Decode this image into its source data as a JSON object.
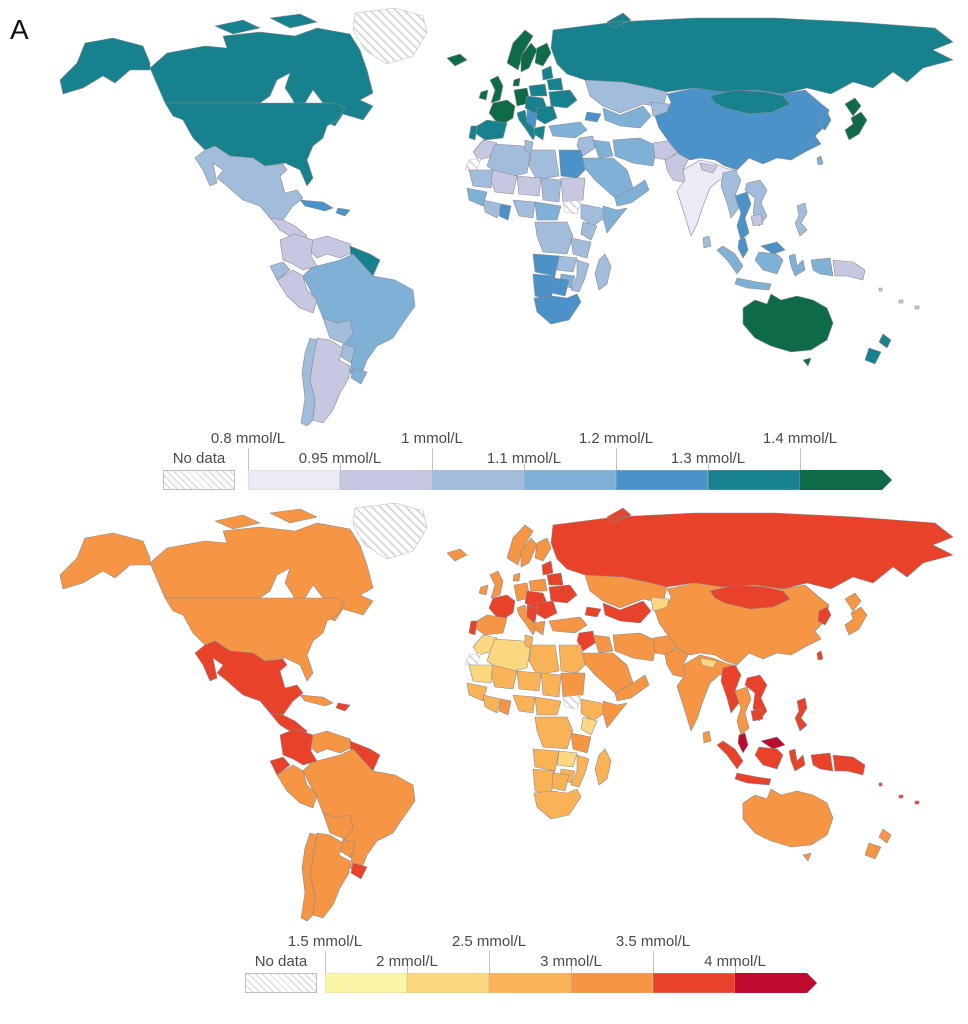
{
  "figure_label": "A",
  "chart_data": [
    {
      "type": "choropleth_map",
      "panel": "top",
      "unit": "mmol/L",
      "legend": {
        "no_data_label": "No data",
        "boundaries": [
          "0.8 mmol/L",
          "0.95 mmol/L",
          "1 mmol/L",
          "1.1 mmol/L",
          "1.2 mmol/L",
          "1.3 mmol/L",
          "1.4 mmol/L"
        ],
        "boundary_rows": [
          "top",
          "bottom",
          "top",
          "bottom",
          "top",
          "bottom",
          "top"
        ],
        "segment_colors": [
          "#ECEAF4",
          "#C6C7E1",
          "#A2BCDB",
          "#7FB0D5",
          "#4A92C8",
          "#17828E"
        ],
        "arrow_color": "#0F6B47"
      },
      "country_colors": {
        "greenland": "nodata",
        "alaska": "#17828E",
        "canada": "#17828E",
        "usa": "#17828E",
        "mexico": "#A2BCDB",
        "central_america": "#C6C7E1",
        "cuba": "#4A92C8",
        "hispaniola": "#4A92C8",
        "colombia": "#C6C7E1",
        "venezuela": "#C6C7E1",
        "guianas": "#17828E",
        "ecuador": "#A2BCDB",
        "peru": "#C6C7E1",
        "brazil": "#7FB0D5",
        "bolivia": "#A2BCDB",
        "paraguay": "#A2BCDB",
        "uruguay": "#7FB0D5",
        "argentina": "#C6C7E1",
        "chile": "#A2BCDB",
        "iceland": "#0F6B47",
        "uk": "#0F6B47",
        "ireland": "#0F6B47",
        "norway": "#0F6B47",
        "sweden": "#0F6B47",
        "finland": "#0F6B47",
        "denmark": "#0F6B47",
        "france": "#0F6B47",
        "spain": "#17828E",
        "portugal": "#17828E",
        "germany": "#0F6B47",
        "italy": "#17828E",
        "central_europe": "#17828E",
        "poland": "#17828E",
        "baltics": "#17828E",
        "belarus": "#17828E",
        "ukraine": "#17828E",
        "romania_bulgaria": "#17828E",
        "balkans": "#4A92C8",
        "greece": "#17828E",
        "turkey": "#7FB0D5",
        "russia": "#17828E",
        "kazakhstan": "#A2BCDB",
        "uzbek_turkmen": "#7FB0D5",
        "kyrgyz_tajik": "#A2BCDB",
        "caucasus": "#4A92C8",
        "levant": "#A2BCDB",
        "iraq": "#7FB0D5",
        "saudi": "#7FB0D5",
        "yemen_oman": "#7FB0D5",
        "iran": "#7FB0D5",
        "afghanistan": "#C6C7E1",
        "pakistan": "#C6C7E1",
        "india": "#ECEAF4",
        "nepal": "#C6C7E1",
        "sri_lanka": "#A2BCDB",
        "china": "#4A92C8",
        "mongolia": "#17828E",
        "korea": "#4A92C8",
        "japan": "#0F6B47",
        "taiwan": "#7FB0D5",
        "myanmar": "#A2BCDB",
        "thailand": "#4A92C8",
        "vietnam_laos": "#A2BCDB",
        "cambodia": "#C6C7E1",
        "malaysia": "#4A92C8",
        "indonesia": "#7FB0D5",
        "philippines": "#A2BCDB",
        "png": "#C6C7E1",
        "pacific_islands": "#C6C7E1",
        "morocco": "#C6C7E1",
        "w_sahara": "nodata",
        "algeria": "#A2BCDB",
        "tunisia": "#A2BCDB",
        "libya": "#A2BCDB",
        "egypt": "#4A92C8",
        "mauritania": "#A2BCDB",
        "mali": "#C6C7E1",
        "niger": "#C6C7E1",
        "chad": "#A2BCDB",
        "sudan": "#C6C7E1",
        "south_sudan": "nodata",
        "ethiopia": "#A2BCDB",
        "somalia": "#7FB0D5",
        "senegal_guinea": "#7FB0D5",
        "wafrica_coast": "#A2BCDB",
        "ghana": "#4A92C8",
        "nigeria": "#A2BCDB",
        "cameroon_car": "#7FB0D5",
        "drc": "#A2BCDB",
        "kenya": "#A2BCDB",
        "tanzania": "#A2BCDB",
        "angola": "#4A92C8",
        "zambia": "#A2BCDB",
        "zimbabwe": "#7FB0D5",
        "mozambique": "#A2BCDB",
        "namibia": "#4A92C8",
        "botswana": "#4A92C8",
        "south_africa": "#4A92C8",
        "madagascar": "#A2BCDB",
        "australia": "#0F6B47",
        "new_zealand": "#17828E"
      }
    },
    {
      "type": "choropleth_map",
      "panel": "bottom",
      "unit": "mmol/L",
      "legend": {
        "no_data_label": "No data",
        "boundaries": [
          "1.5 mmol/L",
          "2 mmol/L",
          "2.5 mmol/L",
          "3 mmol/L",
          "3.5 mmol/L",
          "4 mmol/L"
        ],
        "boundary_rows": [
          "top",
          "bottom",
          "top",
          "bottom",
          "top",
          "bottom"
        ],
        "segment_colors": [
          "#FDF5A6",
          "#FBD77F",
          "#F9B356",
          "#F69543",
          "#E8432A"
        ],
        "arrow_color": "#BD0A2E"
      },
      "country_colors": {
        "greenland": "nodata",
        "alaska": "#F69543",
        "canada": "#F69543",
        "usa": "#F69543",
        "mexico": "#E8432A",
        "central_america": "#E8432A",
        "cuba": "#F69543",
        "hispaniola": "#E8432A",
        "colombia": "#E8432A",
        "venezuela": "#F69543",
        "guianas": "#E8432A",
        "ecuador": "#E8432A",
        "peru": "#F69543",
        "brazil": "#F69543",
        "bolivia": "#F69543",
        "paraguay": "#F69543",
        "uruguay": "#E8432A",
        "argentina": "#F69543",
        "chile": "#F69543",
        "iceland": "#F69543",
        "uk": "#F69543",
        "ireland": "#F69543",
        "norway": "#F69543",
        "sweden": "#F69543",
        "finland": "#F69543",
        "denmark": "#F69543",
        "france": "#E8432A",
        "spain": "#F69543",
        "portugal": "#E8432A",
        "germany": "#F69543",
        "italy": "#F69543",
        "central_europe": "#E8432A",
        "poland": "#F69543",
        "baltics": "#E8432A",
        "belarus": "#E8432A",
        "ukraine": "#E8432A",
        "romania_bulgaria": "#E8432A",
        "balkans": "#E8432A",
        "greece": "#F69543",
        "turkey": "#F69543",
        "russia": "#E8432A",
        "kazakhstan": "#F69543",
        "uzbek_turkmen": "#E8432A",
        "kyrgyz_tajik": "#FBD77F",
        "caucasus": "#E8432A",
        "levant": "#E8432A",
        "iraq": "#F69543",
        "saudi": "#F69543",
        "yemen_oman": "#F69543",
        "iran": "#F69543",
        "afghanistan": "#F69543",
        "pakistan": "#F69543",
        "india": "#F69543",
        "nepal": "#FBD77F",
        "sri_lanka": "#F69543",
        "china": "#F69543",
        "mongolia": "#E8432A",
        "korea": "#E8432A",
        "japan": "#F69543",
        "taiwan": "#E8432A",
        "myanmar": "#E8432A",
        "thailand": "#F69543",
        "vietnam_laos": "#E8432A",
        "cambodia": "#E8432A",
        "malaysia": "#BD0A2E",
        "indonesia": "#E8432A",
        "philippines": "#E8432A",
        "png": "#E8432A",
        "pacific_islands": "#E8432A",
        "morocco": "#FBD77F",
        "w_sahara": "nodata",
        "algeria": "#FBD77F",
        "tunisia": "#F9B356",
        "libya": "#F9B356",
        "egypt": "#F9B356",
        "mauritania": "#FBD77F",
        "mali": "#F9B356",
        "niger": "#F9B356",
        "chad": "#F9B356",
        "sudan": "#F69543",
        "south_sudan": "nodata",
        "ethiopia": "#F9B356",
        "somalia": "#F69543",
        "senegal_guinea": "#F9B356",
        "wafrica_coast": "#F9B356",
        "ghana": "#F69543",
        "nigeria": "#F9B356",
        "cameroon_car": "#F9B356",
        "drc": "#F9B356",
        "kenya": "#FBD77F",
        "tanzania": "#F69543",
        "angola": "#F9B356",
        "zambia": "#FBD77F",
        "zimbabwe": "#F9B356",
        "mozambique": "#F9B356",
        "namibia": "#F9B356",
        "botswana": "#F9B356",
        "south_africa": "#F9B356",
        "madagascar": "#F9B356",
        "australia": "#F69543",
        "new_zealand": "#F69543"
      }
    }
  ]
}
